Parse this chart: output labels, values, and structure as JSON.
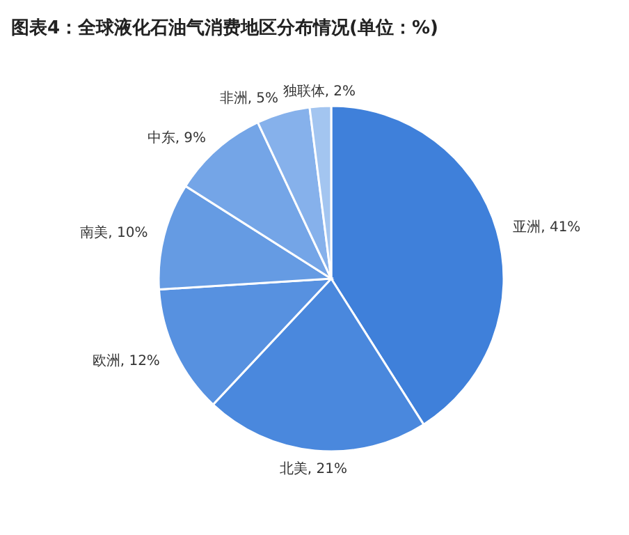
{
  "chart_data": {
    "type": "pie",
    "title": "图表4：全球液化石油气消费地区分布情况(单位：%)",
    "categories": [
      "亚洲",
      "北美",
      "欧洲",
      "南美",
      "中东",
      "非洲",
      "独联体"
    ],
    "values": [
      41,
      21,
      12,
      10,
      9,
      5,
      2
    ],
    "colors": [
      "#3f80da",
      "#4a88dd",
      "#5791e0",
      "#659be3",
      "#74a5e7",
      "#86b1eb",
      "#a3c5f0"
    ],
    "value_labels": [
      ", 41%",
      ", 21%",
      ", 12%",
      ", 10%",
      ", 9%",
      ", 5%",
      ", 2%"
    ]
  }
}
